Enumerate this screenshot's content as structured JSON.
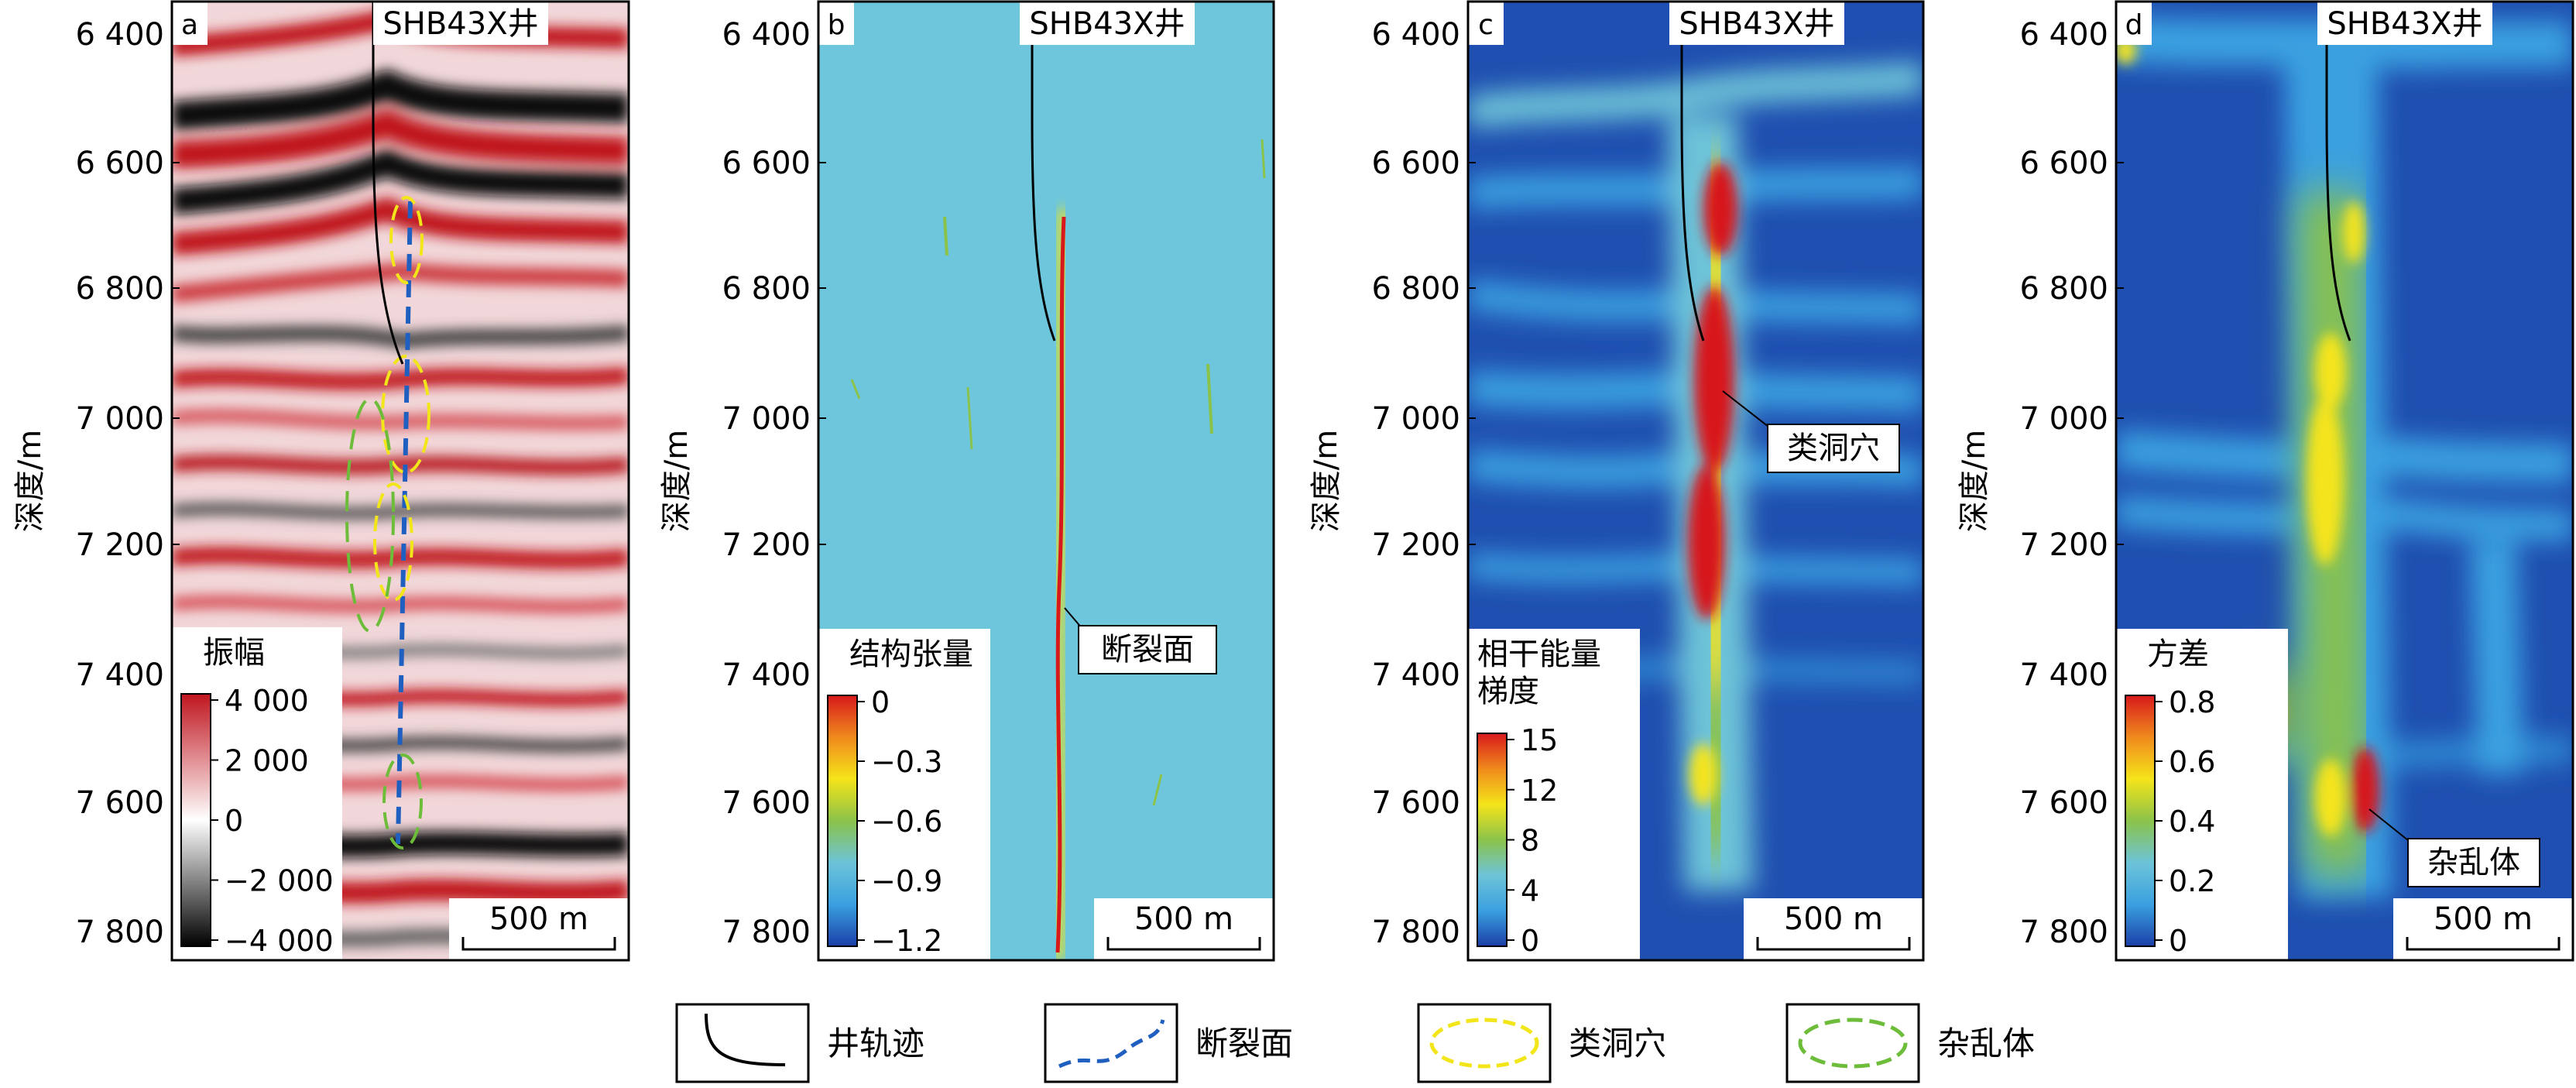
{
  "panels": [
    {
      "letter": "a",
      "well": "SHB43X井",
      "ylabel": "深度/m",
      "colorbar_title": [
        "振幅"
      ],
      "colorbar_ticks": [
        "4 000",
        "2 000",
        "0",
        "−2 000",
        "−4 000"
      ],
      "colorbar_colors": [
        "#000000",
        "#ffffff",
        "#c0151e"
      ],
      "annotation": "",
      "scale_label": "500 m"
    },
    {
      "letter": "b",
      "well": "SHB43X井",
      "ylabel": "深度/m",
      "colorbar_title": [
        "结构张量"
      ],
      "colorbar_ticks": [
        "0",
        "−0.3",
        "−0.6",
        "−0.9",
        "−1.2"
      ],
      "colorbar_colors": [
        "#1b3fa8",
        "#3aa0e0",
        "#6dc3d8",
        "#8bc34a",
        "#f4e41a",
        "#f08a1c",
        "#d7191c"
      ],
      "annotation": "断裂面",
      "scale_label": "500 m"
    },
    {
      "letter": "c",
      "well": "SHB43X井",
      "ylabel": "深度/m",
      "colorbar_title": [
        "相干能量",
        "梯度"
      ],
      "colorbar_ticks": [
        "15",
        "12",
        "8",
        "4",
        "0"
      ],
      "colorbar_colors": [
        "#1b3fa8",
        "#3aa0e0",
        "#6dc3d8",
        "#8bc34a",
        "#f4e41a",
        "#f08a1c",
        "#d7191c"
      ],
      "annotation": "类洞穴",
      "scale_label": "500 m"
    },
    {
      "letter": "d",
      "well": "SHB43X井",
      "ylabel": "深度/m",
      "colorbar_title": [
        "方差"
      ],
      "colorbar_ticks": [
        "0.8",
        "0.6",
        "0.4",
        "0.2",
        "0"
      ],
      "colorbar_colors": [
        "#1b3fa8",
        "#3aa0e0",
        "#6dc3d8",
        "#8bc34a",
        "#f4e41a",
        "#f08a1c",
        "#d7191c"
      ],
      "annotation": "杂乱体",
      "scale_label": "500 m"
    }
  ],
  "depth_ticks": [
    "6 400",
    "6 600",
    "6 800",
    "7 000",
    "7 200",
    "7 400",
    "7 600",
    "7 800"
  ],
  "legend": [
    {
      "label": "井轨迹",
      "symbol": "well-trajectory"
    },
    {
      "label": "断裂面",
      "symbol": "fault-plane"
    },
    {
      "label": "类洞穴",
      "symbol": "cave-like"
    },
    {
      "label": "杂乱体",
      "symbol": "chaotic-body"
    }
  ],
  "colors": {
    "seismic_red": "#c0151e",
    "seismic_black": "#111111",
    "attr_background_b": "#6ec6dc",
    "attr_background_cd": "#1f4fb0",
    "fault_line": "#1f5fbf",
    "cave_outline": "#f2e61a",
    "chaotic_outline": "#6dbd3a",
    "hot": "#e3171b"
  }
}
